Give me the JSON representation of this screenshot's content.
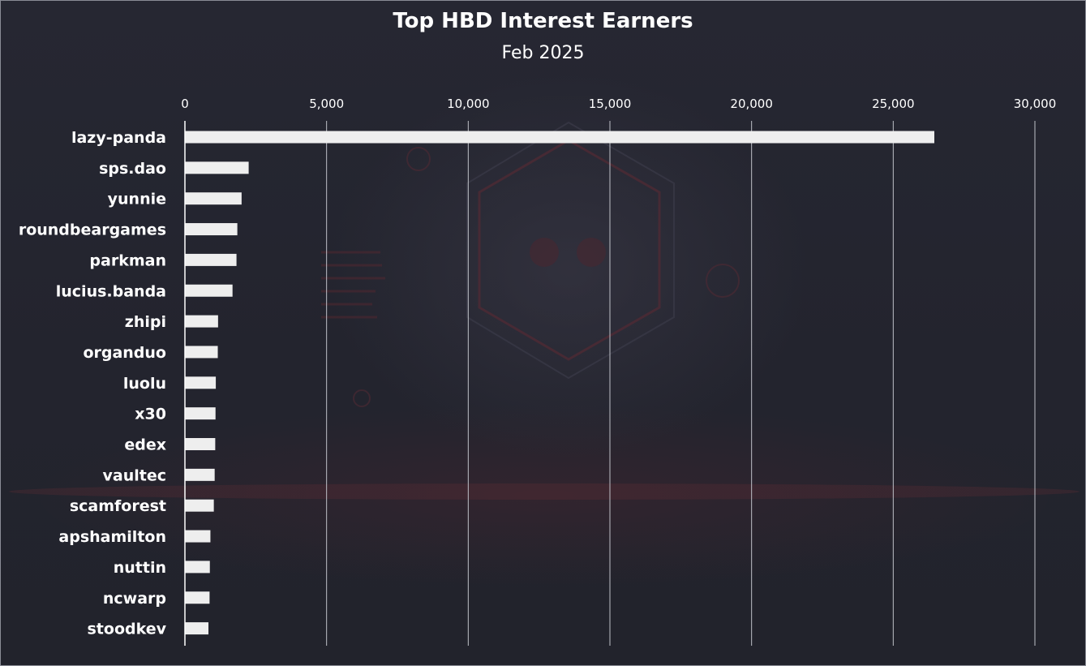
{
  "title": "Top HBD Interest Earners",
  "subtitle": "Feb 2025",
  "colors": {
    "background": "#24252f",
    "bar": "#eeeeee",
    "gridline": "#bfc1c8",
    "text": "#ffffff"
  },
  "chart_data": {
    "type": "bar",
    "orientation": "horizontal",
    "title": "Top HBD Interest Earners",
    "subtitle": "Feb 2025",
    "xlim": [
      0,
      30000
    ],
    "x_ticks": [
      0,
      5000,
      10000,
      15000,
      20000,
      25000,
      30000
    ],
    "x_tick_labels": [
      "0",
      "5,000",
      "10,000",
      "15,000",
      "20,000",
      "25,000",
      "30,000"
    ],
    "x_axis_position": "top",
    "grid": true,
    "categories": [
      "lazy-panda",
      "sps.dao",
      "yunnie",
      "roundbeargames",
      "parkman",
      "lucius.banda",
      "zhipi",
      "organduo",
      "luolu",
      "x30",
      "edex",
      "vaultec",
      "scamforest",
      "apshamilton",
      "nuttin",
      "ncwarp",
      "stoodkev"
    ],
    "values": [
      26450,
      2250,
      2000,
      1850,
      1820,
      1680,
      1170,
      1160,
      1090,
      1080,
      1070,
      1050,
      1020,
      900,
      880,
      870,
      830
    ]
  }
}
